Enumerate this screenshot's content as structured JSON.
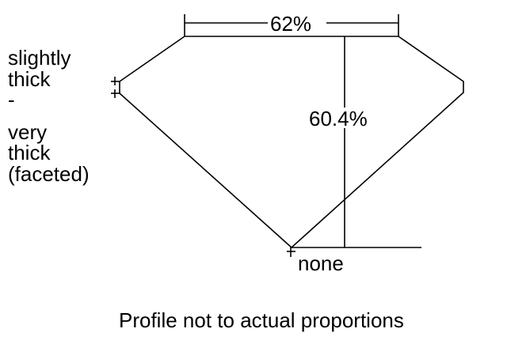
{
  "diagram": {
    "table_label": "62%",
    "depth_label": "60.4%",
    "culet_label": "none",
    "girdle_label_lines": [
      "slightly",
      "thick",
      "-",
      "very",
      "thick",
      "(faceted)"
    ],
    "caption": "Profile not to actual proportions"
  }
}
